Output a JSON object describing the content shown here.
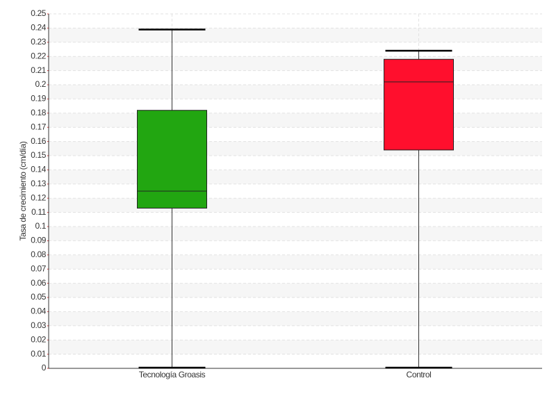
{
  "chart_data": {
    "type": "box",
    "y_label": "Tasa de crecimiento (cm/día)",
    "categories": [
      "Tecnología Groasis",
      "Control"
    ],
    "boxes": [
      {
        "whisker_low": 0,
        "q1": 0.113,
        "median": 0.125,
        "q3": 0.182,
        "whisker_high": 0.239,
        "color": "#22a611"
      },
      {
        "whisker_low": 0,
        "q1": 0.154,
        "median": 0.202,
        "q3": 0.218,
        "whisker_high": 0.224,
        "color": "#ff0f2d"
      }
    ],
    "ylim": [
      0,
      0.25
    ],
    "yticks": [
      0,
      0.01,
      0.02,
      0.03,
      0.04,
      0.05,
      0.06,
      0.07,
      0.08,
      0.09,
      0.1,
      0.11,
      0.12,
      0.13,
      0.14,
      0.15,
      0.16,
      0.17,
      0.18,
      0.19,
      0.2,
      0.21,
      0.22,
      0.23,
      0.24,
      0.25
    ],
    "grid": true
  }
}
